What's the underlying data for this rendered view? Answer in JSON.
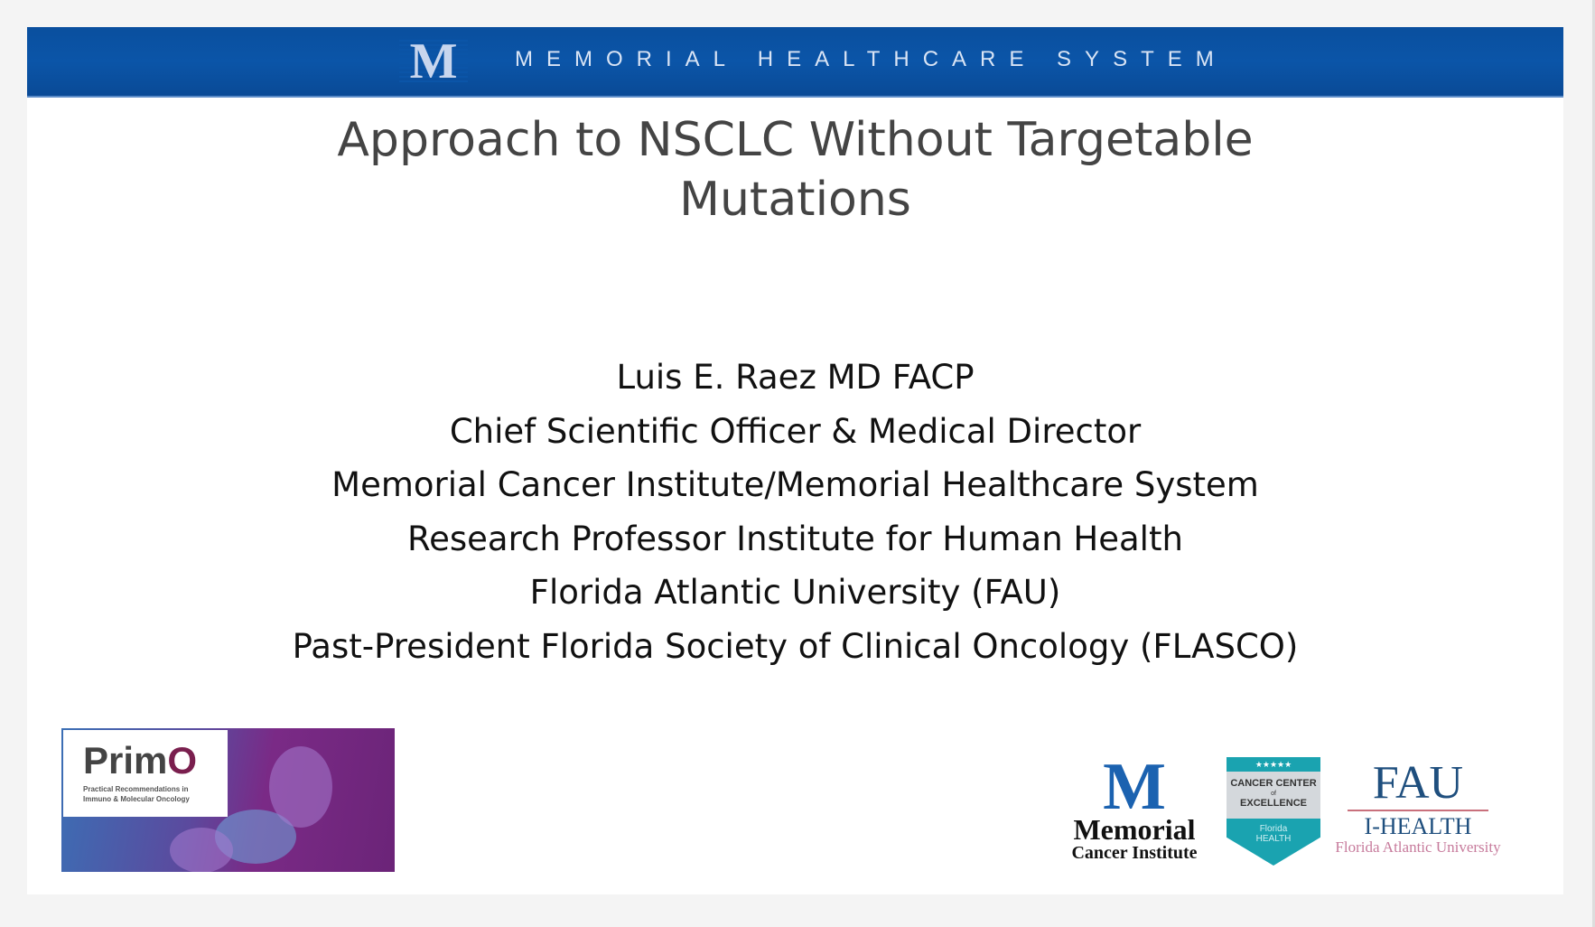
{
  "banner": {
    "logo_letter": "M",
    "org_name": "MEMORIAL HEALTHCARE SYSTEM"
  },
  "title": [
    "Approach to NSCLC Without Targetable",
    "Mutations"
  ],
  "presenter": [
    "Luis E. Raez MD FACP",
    "Chief Scientific Officer & Medical Director",
    "Memorial Cancer Institute/Memorial Healthcare System",
    "Research Professor Institute for Human Health",
    "Florida Atlantic University (FAU)",
    "Past-President Florida Society of Clinical Oncology (FLASCO)"
  ],
  "logos": {
    "primo": {
      "name_a": "Prim",
      "name_b": "O",
      "subtitle": [
        "Practical Recommendations in",
        "Immuno & Molecular Oncology"
      ]
    },
    "memorial": {
      "letter": "M",
      "line1": "Memorial",
      "line2": "Cancer Institute"
    },
    "badge": {
      "stars": "★★★★★",
      "line1": "CANCER CENTER",
      "line2": "of",
      "line3": "EXCELLENCE",
      "line4": "Florida",
      "line5": "HEALTH"
    },
    "fau": {
      "line1": "FAU",
      "line2": "I-HEALTH",
      "line3": "Florida Atlantic University"
    }
  },
  "colors": {
    "banner": "#0b55a8",
    "title": "#444444",
    "body": "#111111"
  }
}
